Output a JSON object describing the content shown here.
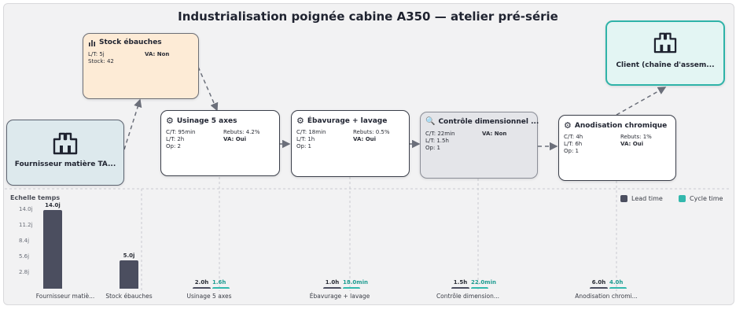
{
  "title": "Industrialisation poignée cabine A350 — atelier pré-série",
  "supplier": {
    "label": "Fournisseur matière TA..."
  },
  "customer": {
    "label": "Client (chaîne d'assem..."
  },
  "inventory": {
    "title": "Stock ébauches",
    "lt": "L/T: 5j",
    "va": "VA: Non",
    "stock": "Stock: 42"
  },
  "processes": [
    {
      "title": "Usinage 5 axes",
      "icon": "gear-icon",
      "ct": "C/T: 95min",
      "rebuts": "Rebuts: 4.2%",
      "lt": "L/T: 2h",
      "va": "VA: Oui",
      "op": "Op: 2"
    },
    {
      "title": "Ébavurage + lavage",
      "icon": "gear-icon",
      "ct": "C/T: 18min",
      "rebuts": "Rebuts: 0.5%",
      "lt": "L/T: 1h",
      "va": "VA: Oui",
      "op": "Op: 1"
    },
    {
      "title": "Contrôle dimensionnel ...",
      "icon": "magnifier-icon",
      "ct": "C/T: 22min",
      "rebuts": "",
      "lt": "L/T: 1.5h",
      "va": "VA: Non",
      "op": "Op: 1"
    },
    {
      "title": "Anodisation chromique",
      "icon": "gear-icon",
      "ct": "C/T: 4h",
      "rebuts": "Rebuts: 1%",
      "lt": "L/T: 6h",
      "va": "VA: Oui",
      "op": "Op: 1"
    }
  ],
  "timeline_label": "Echelle temps",
  "legend": {
    "lead": "Lead time",
    "cycle": "Cycle time"
  },
  "colors": {
    "lead": "#4b4e5f",
    "cycle": "#33b8ad",
    "inventory_fill": "#fdebd6",
    "external_fill": "#dde9ed",
    "customer_border": "#2fb3a8",
    "va_yes": "#1e8a3e",
    "va_no": "#c0392b"
  },
  "chart_data": {
    "type": "bar",
    "categories": [
      "Fournisseur matiè...",
      "Stock ébauches",
      "Usinage 5 axes",
      "Ébavurage + lavage",
      "Contrôle dimension...",
      "Anodisation chromi..."
    ],
    "series": [
      {
        "name": "Lead time",
        "values": [
          14.0,
          5.0,
          0.0833,
          0.0417,
          0.0625,
          0.25
        ],
        "labels": [
          "14.0j",
          "5.0j",
          "2.0h",
          "1.0h",
          "1.5h",
          "6.0h"
        ]
      },
      {
        "name": "Cycle time",
        "values": [
          null,
          null,
          0.066,
          0.0125,
          0.0153,
          0.1667
        ],
        "labels": [
          "",
          "",
          "1.6h",
          "18.0min",
          "22.0min",
          "4.0h"
        ]
      }
    ],
    "yticks": [
      "14.0j",
      "11.2j",
      "8.4j",
      "5.6j",
      "2.8j"
    ],
    "ylim": [
      0,
      14.0
    ],
    "unit": "j"
  }
}
